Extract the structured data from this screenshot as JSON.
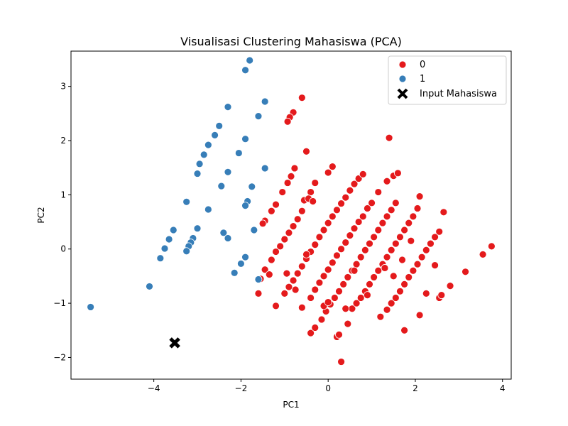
{
  "chart_data": {
    "type": "scatter",
    "title": "Visualisasi Clustering Mahasiswa (PCA)",
    "xlabel": "PC1",
    "ylabel": "PC2",
    "xlim": [
      -5.9,
      4.2
    ],
    "ylim": [
      -2.4,
      3.65
    ],
    "xticks": [
      -4,
      -2,
      0,
      2,
      4
    ],
    "yticks": [
      -2,
      -1,
      0,
      1,
      2,
      3
    ],
    "xtick_labels": [
      "−4",
      "−2",
      "0",
      "2",
      "4"
    ],
    "ytick_labels": [
      "−2",
      "−1",
      "0",
      "1",
      "2",
      "3"
    ],
    "grid": false,
    "legend_position": "top-right",
    "legend": [
      {
        "label": "0",
        "marker": "circle",
        "color": "#e41a1c"
      },
      {
        "label": "1",
        "marker": "circle",
        "color": "#377eb8"
      },
      {
        "label": "Input Mahasiswa",
        "marker": "x",
        "color": "#000000"
      }
    ],
    "series": [
      {
        "name": "0",
        "color": "#e41a1c",
        "points": [
          [
            -0.6,
            2.79
          ],
          [
            -0.8,
            2.52
          ],
          [
            -0.88,
            2.43
          ],
          [
            -0.93,
            2.35
          ],
          [
            -0.5,
            1.8
          ],
          [
            1.4,
            2.05
          ],
          [
            0.1,
            1.52
          ],
          [
            0.0,
            1.41
          ],
          [
            -0.3,
            1.22
          ],
          [
            -0.4,
            1.05
          ],
          [
            -0.77,
            1.49
          ],
          [
            -0.85,
            1.34
          ],
          [
            -0.93,
            1.22
          ],
          [
            -1.05,
            1.05
          ],
          [
            -1.2,
            0.82
          ],
          [
            -1.3,
            0.7
          ],
          [
            -1.45,
            0.52
          ],
          [
            -1.5,
            0.47
          ],
          [
            -0.6,
            0.7
          ],
          [
            -0.7,
            0.55
          ],
          [
            -0.8,
            0.42
          ],
          [
            -0.9,
            0.3
          ],
          [
            -1.0,
            0.18
          ],
          [
            -1.1,
            0.05
          ],
          [
            -1.2,
            -0.05
          ],
          [
            -1.3,
            -0.2
          ],
          [
            -1.45,
            -0.38
          ],
          [
            -1.55,
            -0.55
          ],
          [
            -1.6,
            -0.82
          ],
          [
            -1.35,
            -0.47
          ],
          [
            -1.0,
            -0.82
          ],
          [
            -0.9,
            -0.7
          ],
          [
            -0.8,
            -0.58
          ],
          [
            -0.7,
            -0.45
          ],
          [
            -0.6,
            -0.32
          ],
          [
            -0.5,
            -0.18
          ],
          [
            -0.4,
            -0.05
          ],
          [
            -0.3,
            0.08
          ],
          [
            -0.2,
            0.22
          ],
          [
            -0.1,
            0.35
          ],
          [
            0.0,
            0.48
          ],
          [
            0.1,
            0.6
          ],
          [
            0.2,
            0.72
          ],
          [
            0.3,
            0.84
          ],
          [
            0.4,
            0.95
          ],
          [
            0.5,
            1.08
          ],
          [
            0.6,
            1.2
          ],
          [
            0.7,
            1.3
          ],
          [
            0.8,
            1.38
          ],
          [
            -0.95,
            -0.45
          ],
          [
            -0.75,
            -0.75
          ],
          [
            -0.5,
            -0.1
          ],
          [
            -0.55,
            0.9
          ],
          [
            -0.45,
            0.93
          ],
          [
            -0.35,
            0.88
          ],
          [
            -1.2,
            -1.05
          ],
          [
            -0.6,
            -1.08
          ],
          [
            -0.4,
            -0.9
          ],
          [
            -0.3,
            -0.75
          ],
          [
            -0.2,
            -0.62
          ],
          [
            -0.1,
            -0.5
          ],
          [
            0.0,
            -0.38
          ],
          [
            0.1,
            -0.25
          ],
          [
            0.2,
            -0.12
          ],
          [
            0.3,
            0.0
          ],
          [
            0.4,
            0.12
          ],
          [
            0.5,
            0.25
          ],
          [
            0.6,
            0.38
          ],
          [
            0.7,
            0.5
          ],
          [
            0.8,
            0.6
          ],
          [
            0.9,
            0.75
          ],
          [
            1.0,
            0.85
          ],
          [
            1.15,
            1.05
          ],
          [
            1.35,
            1.25
          ],
          [
            1.5,
            1.35
          ],
          [
            1.6,
            1.4
          ],
          [
            -0.4,
            -1.55
          ],
          [
            -0.3,
            -1.45
          ],
          [
            -0.15,
            -1.3
          ],
          [
            -0.05,
            -1.15
          ],
          [
            0.05,
            -1.02
          ],
          [
            0.15,
            -0.9
          ],
          [
            0.25,
            -0.78
          ],
          [
            0.35,
            -0.65
          ],
          [
            0.45,
            -0.52
          ],
          [
            0.55,
            -0.4
          ],
          [
            0.65,
            -0.28
          ],
          [
            0.75,
            -0.15
          ],
          [
            0.85,
            -0.02
          ],
          [
            0.95,
            0.1
          ],
          [
            1.05,
            0.22
          ],
          [
            1.15,
            0.35
          ],
          [
            1.25,
            0.48
          ],
          [
            1.35,
            0.6
          ],
          [
            1.45,
            0.72
          ],
          [
            1.55,
            0.85
          ],
          [
            -0.1,
            -1.05
          ],
          [
            0.0,
            -0.98
          ],
          [
            0.2,
            -1.62
          ],
          [
            0.25,
            -1.58
          ],
          [
            0.3,
            -2.08
          ],
          [
            0.45,
            -1.38
          ],
          [
            0.55,
            -1.1
          ],
          [
            0.65,
            -1.0
          ],
          [
            0.75,
            -0.9
          ],
          [
            0.85,
            -0.78
          ],
          [
            0.95,
            -0.65
          ],
          [
            1.05,
            -0.52
          ],
          [
            1.15,
            -0.4
          ],
          [
            1.25,
            -0.28
          ],
          [
            1.35,
            -0.15
          ],
          [
            1.45,
            -0.02
          ],
          [
            1.55,
            0.1
          ],
          [
            1.65,
            0.22
          ],
          [
            1.75,
            0.35
          ],
          [
            1.85,
            0.48
          ],
          [
            1.95,
            0.6
          ],
          [
            2.05,
            0.75
          ],
          [
            2.1,
            0.97
          ],
          [
            1.2,
            -1.25
          ],
          [
            1.35,
            -1.12
          ],
          [
            1.45,
            -1.0
          ],
          [
            1.55,
            -0.9
          ],
          [
            1.65,
            -0.78
          ],
          [
            1.75,
            -0.65
          ],
          [
            1.85,
            -0.52
          ],
          [
            1.95,
            -0.4
          ],
          [
            2.05,
            -0.28
          ],
          [
            2.15,
            -0.15
          ],
          [
            2.25,
            -0.02
          ],
          [
            2.35,
            0.1
          ],
          [
            2.45,
            0.22
          ],
          [
            2.55,
            0.32
          ],
          [
            2.65,
            0.68
          ],
          [
            1.75,
            -1.5
          ],
          [
            2.1,
            -1.22
          ],
          [
            2.25,
            -0.82
          ],
          [
            2.55,
            -0.9
          ],
          [
            2.6,
            -0.85
          ],
          [
            2.8,
            -0.68
          ],
          [
            3.15,
            -0.42
          ],
          [
            2.45,
            -0.3
          ],
          [
            3.55,
            -0.1
          ],
          [
            3.75,
            0.05
          ],
          [
            1.5,
            -0.5
          ],
          [
            1.3,
            -0.35
          ],
          [
            0.9,
            -0.85
          ],
          [
            0.6,
            -0.4
          ],
          [
            0.4,
            -1.1
          ],
          [
            1.7,
            -0.2
          ],
          [
            1.9,
            0.15
          ]
        ]
      },
      {
        "name": "1",
        "color": "#377eb8",
        "points": [
          [
            -1.8,
            3.48
          ],
          [
            -1.9,
            3.3
          ],
          [
            -1.45,
            2.72
          ],
          [
            -2.3,
            2.62
          ],
          [
            -1.6,
            2.45
          ],
          [
            -2.5,
            2.27
          ],
          [
            -2.6,
            2.1
          ],
          [
            -1.9,
            2.03
          ],
          [
            -2.75,
            1.92
          ],
          [
            -2.85,
            1.74
          ],
          [
            -2.05,
            1.77
          ],
          [
            -2.95,
            1.57
          ],
          [
            -1.45,
            1.49
          ],
          [
            -2.3,
            1.42
          ],
          [
            -3.0,
            1.39
          ],
          [
            -2.45,
            1.16
          ],
          [
            -1.75,
            1.15
          ],
          [
            -1.85,
            0.88
          ],
          [
            -1.9,
            0.8
          ],
          [
            -3.25,
            0.87
          ],
          [
            -2.75,
            0.73
          ],
          [
            -3.55,
            0.35
          ],
          [
            -3.0,
            0.38
          ],
          [
            -2.4,
            0.3
          ],
          [
            -1.7,
            0.35
          ],
          [
            -3.1,
            0.2
          ],
          [
            -2.3,
            0.2
          ],
          [
            -3.65,
            0.18
          ],
          [
            -3.15,
            0.12
          ],
          [
            -3.2,
            0.05
          ],
          [
            -3.75,
            0.01
          ],
          [
            -3.25,
            -0.04
          ],
          [
            -1.9,
            -0.15
          ],
          [
            -3.85,
            -0.17
          ],
          [
            -2.0,
            -0.27
          ],
          [
            -2.15,
            -0.44
          ],
          [
            -1.6,
            -0.56
          ],
          [
            -4.1,
            -0.69
          ],
          [
            -5.45,
            -1.07
          ]
        ]
      },
      {
        "name": "Input Mahasiswa",
        "color": "#000000",
        "points": [
          [
            -3.52,
            -1.73
          ]
        ]
      }
    ]
  }
}
